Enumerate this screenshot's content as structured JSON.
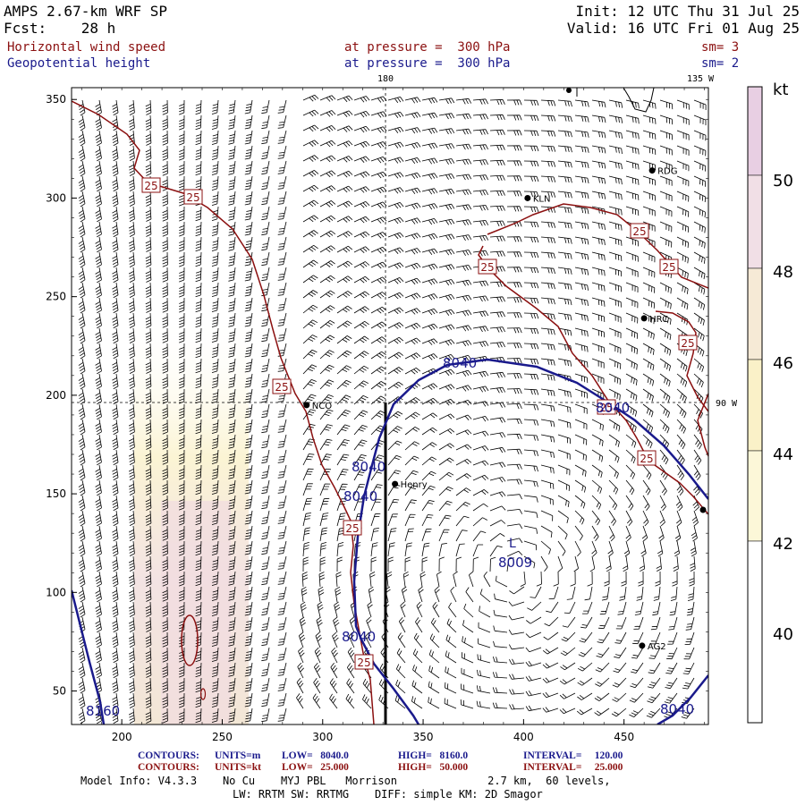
{
  "header": {
    "model": "AMPS 2.67-km WRF SP",
    "forecast": "Fcst:    28 h",
    "init": "Init: 12 UTC Thu 31 Jul 25",
    "valid": "Valid: 16 UTC Fri 01 Aug 25",
    "field1": {
      "name": "Horizontal wind speed",
      "level": "at pressure =  300 hPa",
      "smooth": "sm= 3"
    },
    "field2": {
      "name": "Geopotential height",
      "level": "at pressure =  300 hPa",
      "smooth": "sm= 2"
    }
  },
  "map": {
    "meridian_180": "180",
    "meridian_135w": "135 W",
    "parallel_90w": "90 W",
    "y_ticks": [
      "350",
      "300",
      "250",
      "200",
      "150",
      "100",
      "50"
    ],
    "x_ticks": [
      "200",
      "250",
      "300",
      "350",
      "400",
      "450"
    ],
    "stations": [
      {
        "id": "KLN",
        "x": 402,
        "y": 300
      },
      {
        "id": "RDG",
        "x": 464,
        "y": 314
      },
      {
        "id": "HRC",
        "x": 460,
        "y": 239
      },
      {
        "id": "NCO",
        "x": 292,
        "y": 195
      },
      {
        "id": "Henry",
        "x": 336,
        "y": 155
      },
      {
        "id": "AG2",
        "x": 459,
        "y": 73
      }
    ],
    "height_labels": [
      "8040",
      "8040",
      "8040",
      "8040",
      "8040",
      "8040",
      "8160"
    ],
    "low_center": {
      "symbol": "L",
      "value": "8009"
    },
    "speed_label": "25",
    "colors": {
      "height": "#1a1a8c",
      "speed": "#8b1010"
    }
  },
  "colorbar": {
    "unit": "kt",
    "labels": [
      "50",
      "48",
      "46",
      "44",
      "42",
      "40"
    ],
    "bands": [
      "#e8cfe3",
      "#f1dfe6",
      "#f6ead6",
      "#faf1c8",
      "#fcf7d8",
      "#ffffff"
    ]
  },
  "footer": {
    "row1": {
      "label": "CONTOURS:",
      "units": "UNITS=m",
      "low": "LOW=   8040.0",
      "high": "HIGH=   8160.0",
      "interval": "INTERVAL=     120.00"
    },
    "row2": {
      "label": "CONTOURS:",
      "units": "UNITS=kt",
      "low": "LOW=   25.000",
      "high": "HIGH=   50.000",
      "interval": "INTERVAL=     25.000"
    },
    "model_info": "Model Info: V4.3.3    No Cu    MYJ PBL   Morrison              2.7 km,  60 levels,",
    "physics": "LW: RRTM SW: RRTMG    DIFF: simple KM: 2D Smagor"
  }
}
